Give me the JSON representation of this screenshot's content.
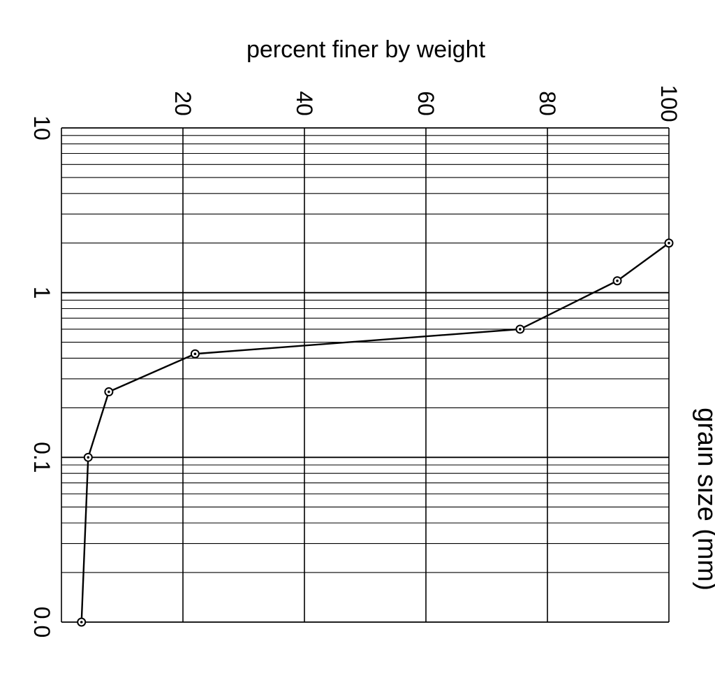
{
  "chart_data": {
    "type": "line",
    "title": "",
    "ylabel": "percent finer by weight",
    "xlabel": "grain size (mm)",
    "x_scale": "log",
    "xlim": [
      10,
      0.01
    ],
    "ylim": [
      0,
      100
    ],
    "x_ticks": [
      {
        "value": 10,
        "label": "10"
      },
      {
        "value": 1,
        "label": "1"
      },
      {
        "value": 0.1,
        "label": "0.1"
      },
      {
        "value": 0.01,
        "label": "0.0"
      }
    ],
    "y_ticks": [
      {
        "value": 20,
        "label": "20"
      },
      {
        "value": 40,
        "label": "40"
      },
      {
        "value": 60,
        "label": "60"
      },
      {
        "value": 80,
        "label": "80"
      },
      {
        "value": 100,
        "label": "100"
      }
    ],
    "grid": true,
    "series": [
      {
        "x": [
          2,
          1.18,
          0.6,
          0.425,
          0.25,
          0.1,
          0.01
        ],
        "y": [
          100,
          91.5,
          75.5,
          22,
          7.8,
          4.4,
          3.3
        ],
        "color": "#000000",
        "marker": "circle-dot"
      }
    ]
  }
}
